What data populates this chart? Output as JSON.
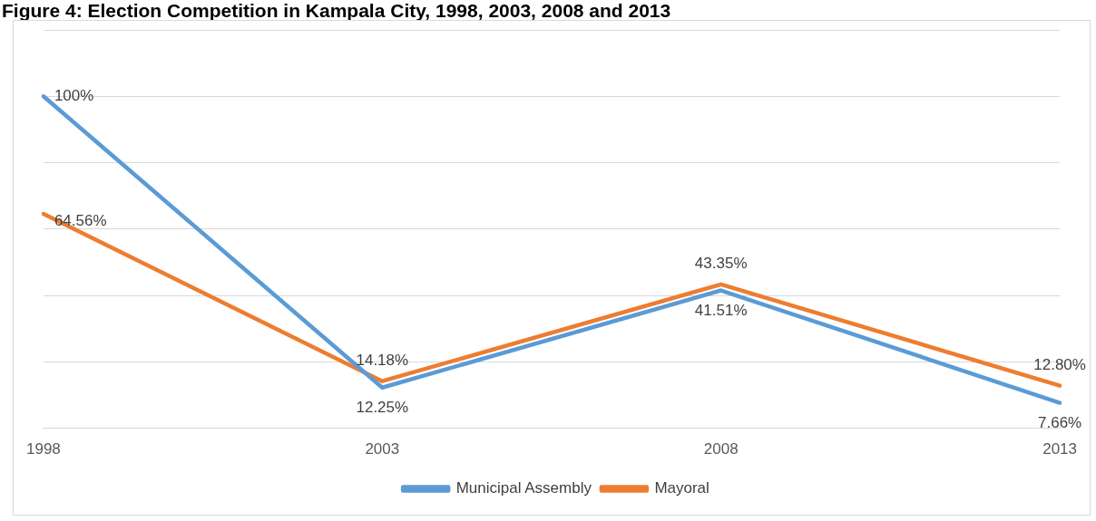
{
  "chart_data": {
    "type": "line",
    "title": "Figure 4: Election Competition in Kampala City, 1998, 2003, 2008 and 2013",
    "categories": [
      "1998",
      "2003",
      "2008",
      "2013"
    ],
    "series": [
      {
        "name": "Municipal Assembly",
        "color": "#5b9bd5",
        "values": [
          100,
          12.25,
          41.51,
          7.66
        ],
        "value_labels": [
          "100%",
          "12.25%",
          "41.51%",
          "7.66%"
        ]
      },
      {
        "name": "Mayoral",
        "color": "#ed7d31",
        "values": [
          64.56,
          14.18,
          43.35,
          12.8
        ],
        "value_labels": [
          "64.56%",
          "14.18%",
          "43.35%",
          "12.80%"
        ]
      }
    ],
    "ylim": [
      0,
      120
    ],
    "yticks": [
      {
        "value": 0,
        "label": null
      },
      {
        "value": 20,
        "label": null
      },
      {
        "value": 40,
        "label": null
      },
      {
        "value": 60,
        "label": null
      },
      {
        "value": 80,
        "label": null
      },
      {
        "value": 100,
        "label": null
      },
      {
        "value": 120,
        "label": null
      }
    ],
    "grid": "y",
    "tick_labels": "x",
    "legend": "bottom",
    "marker": "none",
    "line_style": "solid"
  }
}
